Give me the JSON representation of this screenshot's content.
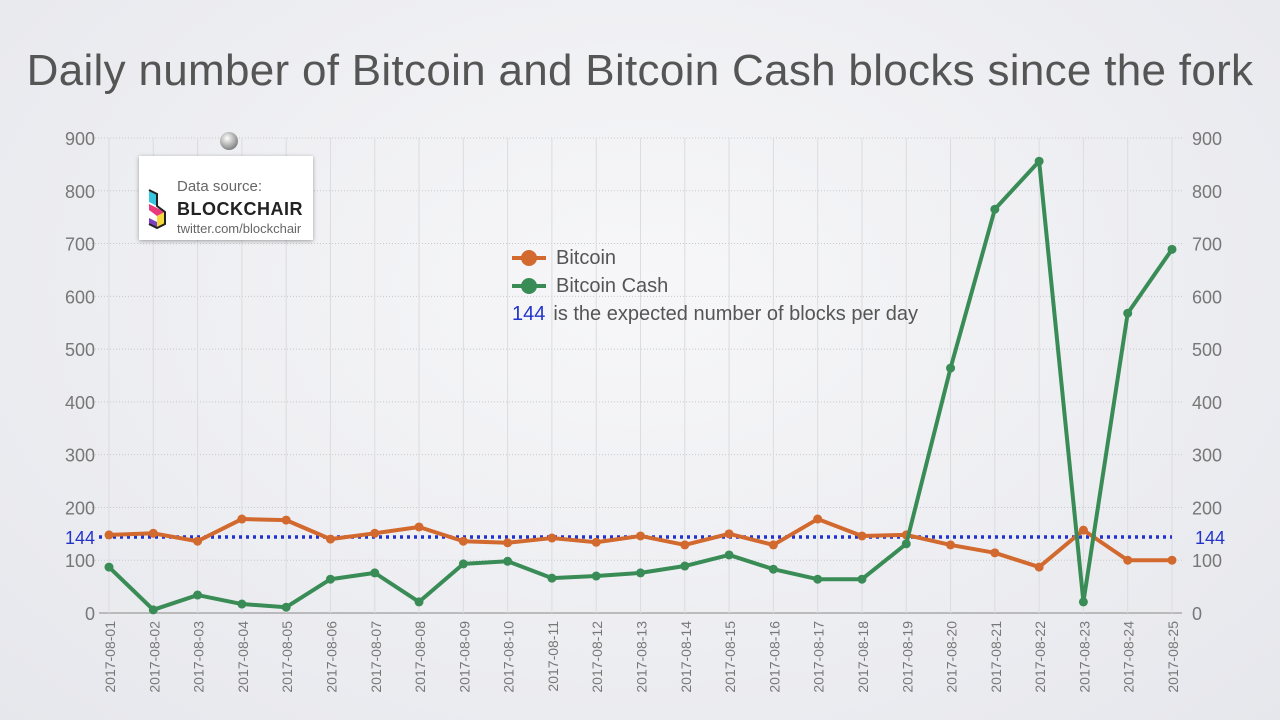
{
  "chart_data": {
    "type": "line",
    "title": "Daily number of Bitcoin and Bitcoin Cash blocks since the fork",
    "x": [
      "2017-08-01",
      "2017-08-02",
      "2017-08-03",
      "2017-08-04",
      "2017-08-05",
      "2017-08-06",
      "2017-08-07",
      "2017-08-08",
      "2017-08-09",
      "2017-08-10",
      "2017-08-11",
      "2017-08-12",
      "2017-08-13",
      "2017-08-14",
      "2017-08-15",
      "2017-08-16",
      "2017-08-17",
      "2017-08-18",
      "2017-08-19",
      "2017-08-20",
      "2017-08-21",
      "2017-08-22",
      "2017-08-23",
      "2017-08-24",
      "2017-08-25"
    ],
    "series": [
      {
        "name": "Bitcoin",
        "color": "#d2692e",
        "values": [
          148,
          151,
          136,
          178,
          176,
          140,
          151,
          163,
          136,
          133,
          142,
          134,
          146,
          129,
          150,
          129,
          178,
          146,
          148,
          129,
          114,
          87,
          157,
          100,
          100
        ]
      },
      {
        "name": "Bitcoin Cash",
        "color": "#3a8c57",
        "values": [
          87,
          6,
          34,
          17,
          11,
          64,
          76,
          21,
          93,
          98,
          66,
          70,
          76,
          89,
          110,
          83,
          64,
          64,
          131,
          464,
          765,
          856,
          21,
          568,
          689
        ]
      }
    ],
    "reference_line": {
      "value": 144,
      "label": "144",
      "color": "#2233cc"
    },
    "yticks": [
      0,
      100,
      200,
      300,
      400,
      500,
      600,
      700,
      800,
      900
    ],
    "ylim": [
      0,
      900
    ],
    "grid": true,
    "legend_position": "top-center",
    "annotation": {
      "number": "144",
      "text": "is the expected number of blocks per day"
    }
  },
  "source": {
    "label": "Data source:",
    "brand": "BLOCKCHAIR",
    "link": "twitter.com/blockchair"
  }
}
